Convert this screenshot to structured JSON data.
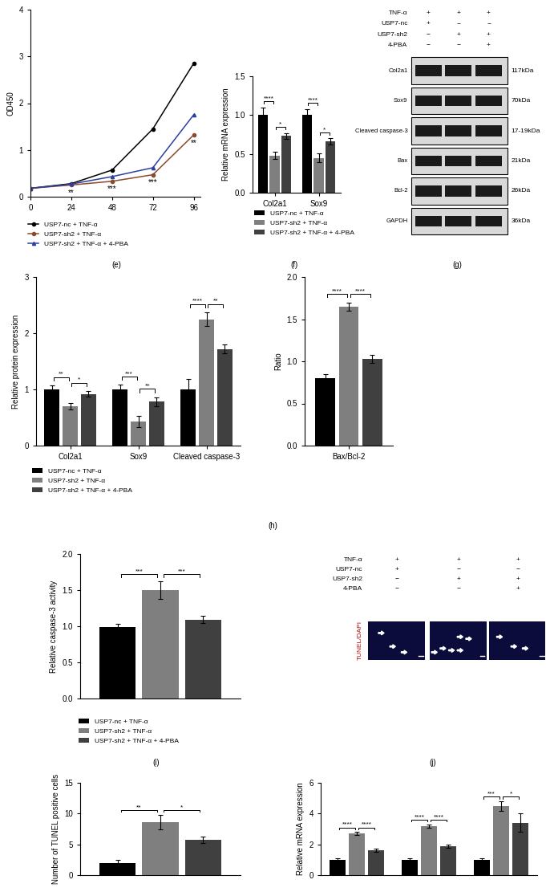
{
  "chart_data": [
    {
      "type": "line",
      "caption": "(e)",
      "ylabel": "OD450",
      "x": [
        0,
        24,
        48,
        72,
        96
      ],
      "xlim": [
        0,
        100
      ],
      "xticks": [
        0,
        24,
        48,
        72,
        96
      ],
      "ylim": [
        0,
        4
      ],
      "yticks": [
        0,
        1,
        2,
        3,
        4
      ],
      "legend": "below",
      "series": [
        {
          "name": "USP7-nc + TNF-α",
          "color": "#000000",
          "marker": "o",
          "values": [
            0.18,
            0.28,
            0.57,
            1.45,
            2.85
          ]
        },
        {
          "name": "USP7-sh2 + TNF-α",
          "color": "#8b4a2b",
          "marker": "o",
          "values": [
            0.18,
            0.25,
            0.33,
            0.47,
            1.32
          ]
        },
        {
          "name": "USP7-sh2 + TNF-α + 4-PBA",
          "color": "#2b3f9e",
          "marker": "^",
          "values": [
            0.18,
            0.27,
            0.43,
            0.62,
            1.75
          ]
        }
      ],
      "annotations": [
        {
          "x": 24,
          "text": "**"
        },
        {
          "x": 48,
          "text": "***"
        },
        {
          "x": 72,
          "text": "***"
        },
        {
          "x": 96,
          "text": "**"
        }
      ]
    },
    {
      "type": "bar",
      "caption": "(f)",
      "ylabel": "Relative mRNA expression",
      "categories": [
        "Col2a1",
        "Sox9"
      ],
      "ylim": [
        0,
        1.5
      ],
      "yticks": [
        {
          "value": 0,
          "label": "0.0"
        },
        0.5,
        {
          "value": 1,
          "label": "1.0"
        },
        1.5
      ],
      "legend": "below",
      "series": [
        {
          "name": "USP7-nc + TNF-α",
          "color": "#000000",
          "values": [
            1.0,
            1.0
          ],
          "errors": [
            0.1,
            0.08
          ]
        },
        {
          "name": "USP7-sh2 + TNF-α",
          "color": "#7f7f7f",
          "values": [
            0.48,
            0.45
          ],
          "errors": [
            0.05,
            0.06
          ]
        },
        {
          "name": "USP7-sh2 + TNF-α + 4-PBA",
          "color": "#404040",
          "values": [
            0.73,
            0.66
          ],
          "errors": [
            0.04,
            0.04
          ]
        }
      ],
      "significance": [
        {
          "category": 0,
          "pair": [
            0,
            1
          ],
          "label": "****"
        },
        {
          "category": 0,
          "pair": [
            1,
            2
          ],
          "label": "*"
        },
        {
          "category": 1,
          "pair": [
            0,
            1
          ],
          "label": "****"
        },
        {
          "category": 1,
          "pair": [
            1,
            2
          ],
          "label": "*"
        }
      ]
    },
    {
      "type": "blot",
      "caption": "(g)",
      "conditions": [
        {
          "name": "TNF-α",
          "signs": [
            "+",
            "+",
            "+"
          ]
        },
        {
          "name": "USP7-nc",
          "signs": [
            "+",
            "−",
            "−"
          ]
        },
        {
          "name": "USP7-sh2",
          "signs": [
            "−",
            "+",
            "+"
          ]
        },
        {
          "name": "4-PBA",
          "signs": [
            "−",
            "−",
            "+"
          ]
        }
      ],
      "bands": [
        {
          "name": "Col2a1",
          "size": "117kDa"
        },
        {
          "name": "Sox9",
          "size": "70kDa"
        },
        {
          "name": "Cleaved caspase-3",
          "size": "17-19kDa"
        },
        {
          "name": "Bax",
          "size": "21kDa"
        },
        {
          "name": "Bcl-2",
          "size": "26kDa"
        },
        {
          "name": "GAPDH",
          "size": "36kDa"
        }
      ]
    },
    {
      "type": "bar",
      "caption": "(h)",
      "ylabel": "Relative protein expression",
      "categories": [
        "Col2a1",
        "Sox9",
        "Cleaved caspase-3"
      ],
      "ylim": [
        0,
        3
      ],
      "yticks": [
        0,
        1,
        2,
        3
      ],
      "legend": "below",
      "series": [
        {
          "name": "USP7-nc + TNF-α",
          "color": "#000000",
          "values": [
            1.0,
            1.0,
            1.0
          ],
          "errors": [
            0.07,
            0.08,
            0.18
          ]
        },
        {
          "name": "USP7-sh2 + TNF-α",
          "color": "#7f7f7f",
          "values": [
            0.7,
            0.43,
            2.25
          ],
          "errors": [
            0.06,
            0.1,
            0.12
          ]
        },
        {
          "name": "USP7-sh2 + TNF-α + 4-PBA",
          "color": "#404040",
          "values": [
            0.92,
            0.78,
            1.72
          ],
          "errors": [
            0.05,
            0.08,
            0.08
          ]
        }
      ],
      "significance": [
        {
          "category": 0,
          "pair": [
            0,
            1
          ],
          "label": "**"
        },
        {
          "category": 0,
          "pair": [
            1,
            2
          ],
          "label": "*"
        },
        {
          "category": 1,
          "pair": [
            0,
            1
          ],
          "label": "***"
        },
        {
          "category": 1,
          "pair": [
            1,
            2
          ],
          "label": "**"
        },
        {
          "category": 2,
          "pair": [
            0,
            1
          ],
          "label": "****"
        },
        {
          "category": 2,
          "pair": [
            1,
            2
          ],
          "label": "**"
        }
      ]
    },
    {
      "type": "bar",
      "ylabel": "Ratio",
      "categories": [
        "Bax/Bcl-2"
      ],
      "ylim": [
        0,
        2
      ],
      "yticks": [
        {
          "value": 0,
          "label": "0.0"
        },
        0.5,
        {
          "value": 1,
          "label": "1.0"
        },
        1.5,
        {
          "value": 2,
          "label": "2.0"
        }
      ],
      "series": [
        {
          "color": "#000000",
          "values": [
            0.8
          ],
          "errors": [
            0.05
          ]
        },
        {
          "color": "#7f7f7f",
          "values": [
            1.65
          ],
          "errors": [
            0.05
          ]
        },
        {
          "color": "#404040",
          "values": [
            1.03
          ],
          "errors": [
            0.05
          ]
        }
      ],
      "significance": [
        {
          "category": 0,
          "pair": [
            0,
            1
          ],
          "label": "****"
        },
        {
          "category": 0,
          "pair": [
            1,
            2
          ],
          "label": "****"
        }
      ]
    },
    {
      "type": "bar",
      "caption": "(i)",
      "ylabel": "Relative caspase-3 activity",
      "categories": [
        null
      ],
      "tick_labels": "y",
      "ylim": [
        0,
        2
      ],
      "yticks": [
        {
          "value": 0,
          "label": "0.0"
        },
        0.5,
        {
          "value": 1,
          "label": "1.0"
        },
        1.5,
        {
          "value": 2,
          "label": "2.0"
        }
      ],
      "legend": "below",
      "series": [
        {
          "name": "USP7-nc + TNF-α",
          "color": "#000000",
          "values": [
            0.99
          ],
          "errors": [
            0.04
          ]
        },
        {
          "name": "USP7-sh2 + TNF-α",
          "color": "#7f7f7f",
          "values": [
            1.5
          ],
          "errors": [
            0.12
          ]
        },
        {
          "name": "USP7-sh2 + TNF-α + 4-PBA",
          "color": "#404040",
          "values": [
            1.09
          ],
          "errors": [
            0.05
          ]
        }
      ],
      "significance": [
        {
          "category": 0,
          "pair": [
            0,
            1
          ],
          "label": "***"
        },
        {
          "category": 0,
          "pair": [
            1,
            2
          ],
          "label": "***"
        }
      ]
    },
    {
      "type": "image",
      "caption": "(j)",
      "channel_label": "TUNEL/DAPI",
      "conditions": [
        {
          "name": "TNF-α",
          "signs": [
            "+",
            "+",
            "+"
          ]
        },
        {
          "name": "USP7-nc",
          "signs": [
            "+",
            "−",
            "−"
          ]
        },
        {
          "name": "USP7-sh2",
          "signs": [
            "−",
            "+",
            "+"
          ]
        },
        {
          "name": "4-PBA",
          "signs": [
            "−",
            "−",
            "+"
          ]
        }
      ]
    },
    {
      "type": "bar",
      "ylabel": "Number of TUNEL positive cells",
      "categories": [
        null
      ],
      "tick_labels": "y",
      "ylim": [
        0,
        15
      ],
      "yticks": [
        0,
        5,
        10,
        15
      ],
      "series": [
        {
          "color": "#000000",
          "values": [
            2.0
          ],
          "errors": [
            0.5
          ]
        },
        {
          "color": "#7f7f7f",
          "values": [
            8.6
          ],
          "errors": [
            1.2
          ]
        },
        {
          "color": "#404040",
          "values": [
            5.7
          ],
          "errors": [
            0.5
          ]
        }
      ],
      "significance": [
        {
          "category": 0,
          "pair": [
            0,
            1
          ],
          "label": "**"
        },
        {
          "category": 0,
          "pair": [
            1,
            2
          ],
          "label": "*"
        }
      ]
    },
    {
      "type": "bar",
      "ylabel": "Relative mRNA expression",
      "categories": [
        null,
        null,
        null
      ],
      "tick_labels": "y",
      "ylim": [
        0,
        6
      ],
      "yticks": [
        0,
        2,
        4,
        6
      ],
      "series": [
        {
          "color": "#000000",
          "values": [
            1.0,
            1.0,
            1.0
          ],
          "errors": [
            0.1,
            0.1,
            0.1
          ]
        },
        {
          "color": "#7f7f7f",
          "values": [
            2.7,
            3.2,
            4.5
          ],
          "errors": [
            0.1,
            0.1,
            0.3
          ]
        },
        {
          "color": "#404040",
          "values": [
            1.6,
            1.9,
            3.4
          ],
          "errors": [
            0.1,
            0.1,
            0.6
          ]
        }
      ],
      "significance": [
        {
          "category": 0,
          "pair": [
            0,
            1
          ],
          "label": "****"
        },
        {
          "category": 0,
          "pair": [
            1,
            2
          ],
          "label": "****"
        },
        {
          "category": 1,
          "pair": [
            0,
            1
          ],
          "label": "****"
        },
        {
          "category": 1,
          "pair": [
            1,
            2
          ],
          "label": "****"
        },
        {
          "category": 2,
          "pair": [
            0,
            1
          ],
          "label": "***"
        },
        {
          "category": 2,
          "pair": [
            1,
            2
          ],
          "label": "*"
        }
      ]
    }
  ]
}
